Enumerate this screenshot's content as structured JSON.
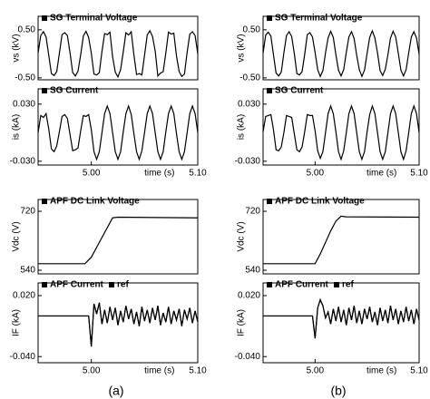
{
  "chart_data": [
    {
      "type": "line",
      "ylabel": "vs (kV)",
      "xlim": [
        4.95,
        5.1
      ],
      "ylim": [
        -0.54,
        0.78
      ],
      "yticks": [
        {
          "value": 0.5,
          "label": "0.50"
        },
        {
          "value": -0.5,
          "label": "-0.50"
        }
      ],
      "x": [
        4.95,
        4.9525,
        4.955,
        4.9575,
        4.96,
        4.9625,
        4.965,
        4.9675,
        4.97,
        4.9725,
        4.975,
        4.9775,
        4.98,
        4.9825,
        4.985,
        4.9875,
        4.99,
        4.9925,
        4.995,
        4.9975,
        5.0,
        5.0025,
        5.005,
        5.0075,
        5.01,
        5.0125,
        5.015,
        5.0175,
        5.02,
        5.0225,
        5.025,
        5.0275,
        5.03,
        5.0325,
        5.035,
        5.0375,
        5.04,
        5.0425,
        5.045,
        5.0475,
        5.05,
        5.0525,
        5.055,
        5.0575,
        5.06,
        5.0625,
        5.065,
        5.0675,
        5.07,
        5.0725,
        5.075,
        5.0775,
        5.08,
        5.0825,
        5.085,
        5.0875,
        5.09,
        5.0925,
        5.095,
        5.0975,
        5.1
      ],
      "series": [
        {
          "name": "SG Terminal Voltage",
          "color": "#000000",
          "values": [
            0.02,
            0.38,
            0.46,
            0.35,
            -0.03,
            -0.41,
            -0.45,
            -0.37,
            0.01,
            0.4,
            0.44,
            0.38,
            0.02,
            -0.39,
            -0.46,
            -0.36,
            -0.02,
            0.37,
            0.47,
            0.34,
            0.01,
            -0.42,
            -0.44,
            -0.39,
            0.05,
            0.42,
            0.4,
            0.45,
            -0.06,
            -0.38,
            -0.48,
            -0.33,
            0.04,
            0.44,
            0.39,
            0.46,
            -0.02,
            -0.43,
            -0.41,
            -0.44,
            -0.03,
            0.39,
            0.48,
            0.36,
            0.06,
            -0.46,
            -0.4,
            -0.37,
            0.02,
            0.45,
            0.41,
            0.43,
            -0.04,
            -0.37,
            -0.47,
            -0.42,
            0.03,
            0.41,
            0.46,
            0.38,
            0.0
          ]
        }
      ]
    },
    {
      "type": "line",
      "ylabel": "is (kA)",
      "xlabel": "time (s)",
      "xlim": [
        4.95,
        5.1
      ],
      "ylim": [
        -0.034,
        0.046
      ],
      "yticks": [
        {
          "value": 0.03,
          "label": "0.030"
        },
        {
          "value": -0.03,
          "label": "-0.030"
        }
      ],
      "xticks": [
        {
          "value": 5.0,
          "label": "5.00"
        },
        {
          "value": 5.1,
          "label": "5.10"
        }
      ],
      "x": [
        4.95,
        4.9525,
        4.955,
        4.9575,
        4.96,
        4.9625,
        4.965,
        4.9675,
        4.97,
        4.9725,
        4.975,
        4.9775,
        4.98,
        4.9825,
        4.985,
        4.9875,
        4.99,
        4.9925,
        4.995,
        4.9975,
        5.0,
        5.0025,
        5.005,
        5.0075,
        5.01,
        5.0125,
        5.015,
        5.0175,
        5.02,
        5.0225,
        5.025,
        5.0275,
        5.03,
        5.0325,
        5.035,
        5.0375,
        5.04,
        5.0425,
        5.045,
        5.0475,
        5.05,
        5.0525,
        5.055,
        5.0575,
        5.06,
        5.0625,
        5.065,
        5.0675,
        5.07,
        5.0725,
        5.075,
        5.0775,
        5.08,
        5.0825,
        5.085,
        5.0875,
        5.09,
        5.0925,
        5.095,
        5.0975,
        5.1
      ],
      "series": [
        {
          "name": "SG Current",
          "color": "#000000",
          "values": [
            0.0,
            0.018,
            0.016,
            0.02,
            0.004,
            -0.017,
            -0.02,
            -0.014,
            0.001,
            0.017,
            0.019,
            0.015,
            -0.002,
            -0.019,
            -0.018,
            -0.016,
            0.002,
            0.018,
            0.017,
            0.019,
            0.003,
            -0.02,
            -0.028,
            -0.02,
            0.0,
            0.02,
            0.028,
            0.02,
            0.0,
            -0.02,
            -0.028,
            -0.02,
            0.001,
            0.02,
            0.028,
            0.019,
            -0.001,
            -0.02,
            -0.028,
            -0.019,
            0.0,
            0.02,
            0.028,
            0.02,
            0.0,
            -0.02,
            -0.028,
            -0.02,
            0.001,
            0.02,
            0.028,
            0.02,
            -0.001,
            -0.02,
            -0.028,
            -0.02,
            0.0,
            0.02,
            0.028,
            0.02,
            0.0
          ]
        }
      ]
    },
    {
      "type": "line",
      "ylabel": "Vdc (V)",
      "xlim": [
        4.95,
        5.1
      ],
      "ylim": [
        529,
        756
      ],
      "yticks": [
        720,
        540
      ],
      "x": [
        4.95,
        4.994,
        5.0,
        5.005,
        5.01,
        5.015,
        5.02,
        5.025,
        5.1
      ],
      "series": [
        {
          "name": "APF DC Link Voltage",
          "color": "#000000",
          "values": [
            560,
            560,
            580,
            610,
            640,
            670,
            700,
            702,
            700
          ]
        }
      ]
    },
    {
      "type": "line",
      "ylabel": "IF (kA)",
      "xlabel": "time (s)",
      "xlim": [
        4.95,
        5.1
      ],
      "ylim": [
        -0.046,
        0.0325
      ],
      "yticks": [
        {
          "value": 0.02,
          "label": "0.020"
        },
        {
          "value": -0.04,
          "label": "-0.040"
        }
      ],
      "xticks": [
        {
          "value": 5.0,
          "label": "5.00"
        },
        {
          "value": 5.1,
          "label": "5.10"
        }
      ],
      "x": [
        4.95,
        4.9525,
        4.955,
        4.9575,
        4.96,
        4.9625,
        4.965,
        4.9675,
        4.97,
        4.9725,
        4.975,
        4.9775,
        4.98,
        4.9825,
        4.985,
        4.9875,
        4.99,
        4.9925,
        4.995,
        4.9975,
        5.0,
        5.0025,
        5.005,
        5.0075,
        5.01,
        5.0125,
        5.015,
        5.0175,
        5.02,
        5.0225,
        5.025,
        5.0275,
        5.03,
        5.0325,
        5.035,
        5.0375,
        5.04,
        5.0425,
        5.045,
        5.0475,
        5.05,
        5.0525,
        5.055,
        5.0575,
        5.06,
        5.0625,
        5.065,
        5.0675,
        5.07,
        5.0725,
        5.075,
        5.0775,
        5.08,
        5.0825,
        5.085,
        5.0875,
        5.09,
        5.0925,
        5.095,
        5.0975,
        5.1
      ],
      "series": [
        {
          "name": "APF Current",
          "color": "#000000",
          "values": [
            0,
            0,
            0,
            0,
            0,
            0,
            0,
            0,
            0,
            0,
            0,
            0,
            0,
            0,
            0,
            0,
            0,
            0,
            0,
            0,
            -0.03,
            0.012,
            0.002,
            0.013,
            -0.008,
            0.006,
            -0.007,
            0.009,
            -0.004,
            0.008,
            -0.009,
            0.005,
            -0.006,
            0.01,
            -0.003,
            0.007,
            -0.008,
            0.004,
            -0.01,
            0.009,
            -0.005,
            0.006,
            -0.007,
            0.008,
            -0.004,
            0.01,
            -0.009,
            0.003,
            -0.006,
            0.009,
            -0.008,
            0.005,
            -0.004,
            0.007,
            -0.01,
            0.006,
            -0.003,
            0.008,
            -0.007,
            0.005,
            -0.006
          ]
        },
        {
          "name": "ref",
          "color": "#000000",
          "values": [
            0,
            0,
            0,
            0,
            0,
            0,
            0,
            0,
            0,
            0,
            0,
            0,
            0,
            0,
            0,
            0,
            0,
            0,
            0,
            0,
            -0.03,
            0.012,
            0.002,
            0.013,
            -0.008,
            0.006,
            -0.007,
            0.009,
            -0.004,
            0.008,
            -0.009,
            0.005,
            -0.006,
            0.01,
            -0.003,
            0.007,
            -0.008,
            0.004,
            -0.01,
            0.009,
            -0.005,
            0.006,
            -0.007,
            0.008,
            -0.004,
            0.01,
            -0.009,
            0.003,
            -0.006,
            0.009,
            -0.008,
            0.005,
            -0.004,
            0.007,
            -0.01,
            0.006,
            -0.003,
            0.008,
            -0.007,
            0.005,
            -0.006
          ]
        }
      ]
    },
    {
      "type": "line",
      "ylabel": "vs (kV)",
      "xlim": [
        4.95,
        5.1
      ],
      "ylim": [
        -0.54,
        0.78
      ],
      "yticks": [
        {
          "value": 0.5,
          "label": "0.50"
        },
        {
          "value": -0.5,
          "label": "-0.50"
        }
      ],
      "x": [
        4.95,
        4.9525,
        4.955,
        4.9575,
        4.96,
        4.9625,
        4.965,
        4.9675,
        4.97,
        4.9725,
        4.975,
        4.9775,
        4.98,
        4.9825,
        4.985,
        4.9875,
        4.99,
        4.9925,
        4.995,
        4.9975,
        5.0,
        5.0025,
        5.005,
        5.0075,
        5.01,
        5.0125,
        5.015,
        5.0175,
        5.02,
        5.0225,
        5.025,
        5.0275,
        5.03,
        5.0325,
        5.035,
        5.0375,
        5.04,
        5.0425,
        5.045,
        5.0475,
        5.05,
        5.0525,
        5.055,
        5.0575,
        5.06,
        5.0625,
        5.065,
        5.0675,
        5.07,
        5.0725,
        5.075,
        5.0775,
        5.08,
        5.0825,
        5.085,
        5.0875,
        5.09,
        5.0925,
        5.095,
        5.0975,
        5.1
      ],
      "series": [
        {
          "name": "SG Terminal Voltage",
          "color": "#000000",
          "values": [
            0.01,
            0.39,
            0.45,
            0.37,
            -0.02,
            -0.4,
            -0.46,
            -0.38,
            0.02,
            0.38,
            0.46,
            0.36,
            0.01,
            -0.41,
            -0.44,
            -0.37,
            -0.01,
            0.4,
            0.44,
            0.35,
            0.03,
            -0.33,
            -0.47,
            -0.35,
            0.02,
            0.33,
            0.47,
            0.34,
            -0.02,
            -0.34,
            -0.46,
            -0.33,
            0.03,
            0.35,
            0.46,
            0.32,
            -0.03,
            -0.33,
            -0.47,
            -0.34,
            0.01,
            0.34,
            0.48,
            0.33,
            0.02,
            -0.35,
            -0.45,
            -0.32,
            -0.02,
            0.33,
            0.47,
            0.35,
            0.01,
            -0.34,
            -0.46,
            -0.33,
            0.02,
            0.35,
            0.46,
            0.33,
            -0.01
          ]
        }
      ]
    },
    {
      "type": "line",
      "ylabel": "is (kA)",
      "xlabel": "time (s)",
      "xlim": [
        4.95,
        5.1
      ],
      "ylim": [
        -0.034,
        0.046
      ],
      "yticks": [
        {
          "value": 0.03,
          "label": "0.030"
        },
        {
          "value": -0.03,
          "label": "-0.030"
        }
      ],
      "xticks": [
        {
          "value": 5.0,
          "label": "5.00"
        },
        {
          "value": 5.1,
          "label": "5.10"
        }
      ],
      "x": [
        4.95,
        4.9525,
        4.955,
        4.9575,
        4.96,
        4.9625,
        4.965,
        4.9675,
        4.97,
        4.9725,
        4.975,
        4.9775,
        4.98,
        4.9825,
        4.985,
        4.9875,
        4.99,
        4.9925,
        4.995,
        4.9975,
        5.0,
        5.0025,
        5.005,
        5.0075,
        5.01,
        5.0125,
        5.015,
        5.0175,
        5.02,
        5.0225,
        5.025,
        5.0275,
        5.03,
        5.0325,
        5.035,
        5.0375,
        5.04,
        5.0425,
        5.045,
        5.0475,
        5.05,
        5.0525,
        5.055,
        5.0575,
        5.06,
        5.0625,
        5.065,
        5.0675,
        5.07,
        5.0725,
        5.075,
        5.0775,
        5.08,
        5.0825,
        5.085,
        5.0875,
        5.09,
        5.0925,
        5.095,
        5.0975,
        5.1
      ],
      "series": [
        {
          "name": "SG Current",
          "color": "#000000",
          "values": [
            0.001,
            0.017,
            0.018,
            0.019,
            0.003,
            -0.018,
            -0.019,
            -0.015,
            0.0,
            0.018,
            0.017,
            0.016,
            -0.001,
            -0.018,
            -0.02,
            -0.015,
            0.001,
            0.019,
            0.018,
            0.018,
            0.002,
            -0.019,
            -0.027,
            -0.02,
            0.0,
            0.02,
            0.028,
            0.02,
            0.001,
            -0.02,
            -0.028,
            -0.019,
            0.0,
            0.02,
            0.028,
            0.02,
            0.0,
            -0.02,
            -0.028,
            -0.02,
            0.001,
            0.019,
            0.028,
            0.02,
            0.0,
            -0.02,
            -0.028,
            -0.02,
            0.0,
            0.02,
            0.028,
            0.02,
            0.0,
            -0.02,
            -0.028,
            -0.019,
            0.0,
            0.02,
            0.028,
            0.02,
            0.0
          ]
        }
      ]
    },
    {
      "type": "line",
      "ylabel": "Vdc (V)",
      "xlim": [
        4.95,
        5.1
      ],
      "ylim": [
        529,
        756
      ],
      "yticks": [
        720,
        540
      ],
      "x": [
        4.95,
        5.0,
        5.005,
        5.01,
        5.015,
        5.02,
        5.025,
        5.03,
        5.1
      ],
      "series": [
        {
          "name": "APF DC Link Voltage",
          "color": "#000000",
          "values": [
            560,
            560,
            590,
            625,
            660,
            690,
            705,
            703,
            702
          ]
        }
      ]
    },
    {
      "type": "line",
      "ylabel": "IF (kA)",
      "xlabel": "time (s)",
      "xlim": [
        4.95,
        5.1
      ],
      "ylim": [
        -0.046,
        0.0325
      ],
      "yticks": [
        {
          "value": 0.02,
          "label": "0.020"
        },
        {
          "value": -0.04,
          "label": "-0.040"
        }
      ],
      "xticks": [
        {
          "value": 5.0,
          "label": "5.00"
        },
        {
          "value": 5.1,
          "label": "5.10"
        }
      ],
      "x": [
        4.95,
        4.9525,
        4.955,
        4.9575,
        4.96,
        4.9625,
        4.965,
        4.9675,
        4.97,
        4.9725,
        4.975,
        4.9775,
        4.98,
        4.9825,
        4.985,
        4.9875,
        4.99,
        4.9925,
        4.995,
        4.9975,
        5.0,
        5.0025,
        5.005,
        5.0075,
        5.01,
        5.0125,
        5.015,
        5.0175,
        5.02,
        5.0225,
        5.025,
        5.0275,
        5.03,
        5.0325,
        5.035,
        5.0375,
        5.04,
        5.0425,
        5.045,
        5.0475,
        5.05,
        5.0525,
        5.055,
        5.0575,
        5.06,
        5.0625,
        5.065,
        5.0675,
        5.07,
        5.0725,
        5.075,
        5.0775,
        5.08,
        5.0825,
        5.085,
        5.0875,
        5.09,
        5.0925,
        5.095,
        5.0975,
        5.1
      ],
      "series": [
        {
          "name": "APF Current",
          "color": "#000000",
          "values": [
            0,
            0,
            0,
            0,
            0,
            0,
            0,
            0,
            0,
            0,
            0,
            0,
            0,
            0,
            0,
            0,
            0,
            0,
            0,
            0,
            -0.022,
            0.008,
            0.016,
            0.01,
            -0.002,
            0.004,
            -0.008,
            0.007,
            -0.005,
            0.009,
            -0.006,
            0.006,
            -0.009,
            0.008,
            -0.004,
            0.01,
            -0.007,
            0.005,
            -0.008,
            0.007,
            -0.003,
            0.009,
            -0.006,
            0.004,
            -0.009,
            0.008,
            -0.005,
            0.006,
            -0.007,
            0.01,
            -0.004,
            0.007,
            -0.008,
            0.005,
            -0.006,
            0.009,
            -0.005,
            0.006,
            -0.008,
            0.007,
            -0.004
          ]
        },
        {
          "name": "ref",
          "color": "#000000",
          "values": [
            0,
            0,
            0,
            0,
            0,
            0,
            0,
            0,
            0,
            0,
            0,
            0,
            0,
            0,
            0,
            0,
            0,
            0,
            0,
            0,
            -0.022,
            0.008,
            0.016,
            0.01,
            -0.002,
            0.004,
            -0.008,
            0.007,
            -0.005,
            0.009,
            -0.006,
            0.006,
            -0.009,
            0.008,
            -0.004,
            0.01,
            -0.007,
            0.005,
            -0.008,
            0.007,
            -0.003,
            0.009,
            -0.006,
            0.004,
            -0.009,
            0.008,
            -0.005,
            0.006,
            -0.007,
            0.01,
            -0.004,
            0.007,
            -0.008,
            0.005,
            -0.006,
            0.009,
            -0.005,
            0.006,
            -0.008,
            0.007,
            -0.004
          ]
        }
      ]
    }
  ],
  "captions": [
    "(a)",
    "(b)"
  ]
}
